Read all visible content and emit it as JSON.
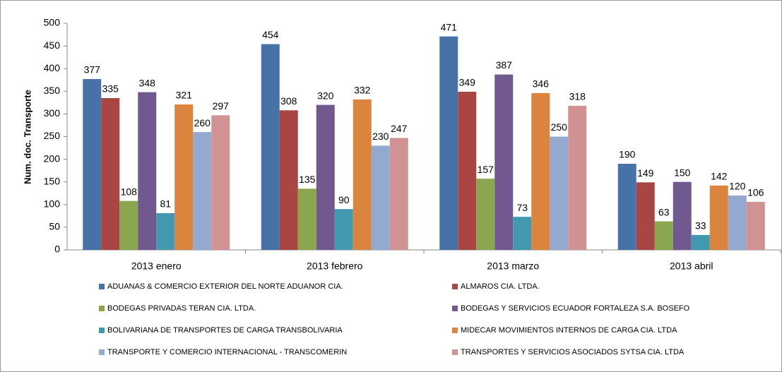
{
  "chart_data": {
    "type": "bar",
    "y_label": "Num. doc. Transporte",
    "categories": [
      "2013 enero",
      "2013 febrero",
      "2013 marzo",
      "2013 abril"
    ],
    "series": [
      {
        "name": "ADUANAS & COMERCIO EXTERIOR DEL NORTE ADUANOR CIA.",
        "color": "#4672a8",
        "values": [
          377,
          454,
          471,
          190
        ]
      },
      {
        "name": "ALMAROS CIA. LTDA.",
        "color": "#a94543",
        "values": [
          335,
          308,
          349,
          149
        ]
      },
      {
        "name": "BODEGAS PRIVADAS TERAN CIA. LTDA.",
        "color": "#8aa64e",
        "values": [
          108,
          135,
          157,
          63
        ]
      },
      {
        "name": "BODEGAS Y SERVICIOS ECUADOR FORTALEZA S.A. BOSEFO",
        "color": "#71588f",
        "values": [
          348,
          320,
          387,
          150
        ]
      },
      {
        "name": "BOLIVARIANA DE TRANSPORTES DE CARGA TRANSBOLIVARIA",
        "color": "#4298af",
        "values": [
          81,
          90,
          73,
          33
        ]
      },
      {
        "name": "MIDECAR MOVIMIENTOS INTERNOS DE CARGA CIA. LTDA",
        "color": "#db843d",
        "values": [
          321,
          332,
          346,
          142
        ]
      },
      {
        "name": "TRANSPORTE Y COMERCIO INTERNACIONAL - TRANSCOMERIN",
        "color": "#93a9cf",
        "values": [
          260,
          230,
          250,
          120
        ]
      },
      {
        "name": "TRANSPORTES Y SERVICIOS ASOCIADOS SYTSA CIA. LTDA",
        "color": "#d09293",
        "values": [
          297,
          247,
          318,
          106
        ]
      }
    ],
    "ylim": [
      0,
      500
    ],
    "yticks": [
      0,
      50,
      100,
      150,
      200,
      250,
      300,
      350,
      400,
      450,
      500
    ],
    "grid": false
  }
}
